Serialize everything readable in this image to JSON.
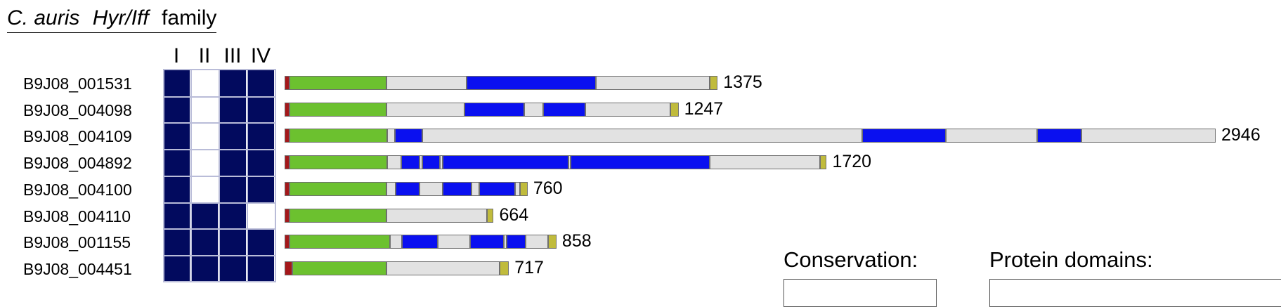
{
  "title": {
    "species": "C. auris",
    "gene_family": "Hyr/Iff",
    "suffix": "family"
  },
  "conservation_columns": [
    "I",
    "II",
    "III",
    "IV"
  ],
  "legend": {
    "conservation_title": "Conservation:",
    "domains_title": "Protein domains:"
  },
  "colors": {
    "conserved": "#020a5e",
    "not_conserved": "#ffffff",
    "signal_peptide": "#a5171a",
    "n_terminal_domain": "#6cc12f",
    "repeat_region": "#0a10f0",
    "unstructured": "#e2e2e2",
    "gpi_anchor": "#c0bb3c"
  },
  "chart_data": {
    "type": "table",
    "scale_max_length": 2946,
    "genes": [
      {
        "id": "B9J08_001531",
        "length": "1375",
        "conservation": [
          1,
          0,
          1,
          1
        ],
        "domains": [
          {
            "type": "signal_peptide",
            "start": 0,
            "end": 29
          },
          {
            "type": "n_terminal_domain",
            "start": 29,
            "end": 600
          },
          {
            "type": "unstructured",
            "start": 600,
            "end": 1070
          },
          {
            "type": "repeat_region",
            "start": 1070,
            "end": 1830
          },
          {
            "type": "unstructured",
            "start": 1830,
            "end": 2500
          },
          {
            "type": "gpi_anchor",
            "start": 2500,
            "end": 2548
          }
        ]
      },
      {
        "id": "B9J08_004098",
        "length": "1247",
        "conservation": [
          1,
          0,
          1,
          1
        ],
        "domains": [
          {
            "type": "signal_peptide",
            "start": 0,
            "end": 29
          },
          {
            "type": "n_terminal_domain",
            "start": 29,
            "end": 600
          },
          {
            "type": "unstructured",
            "start": 600,
            "end": 1060
          },
          {
            "type": "repeat_region",
            "start": 1060,
            "end": 1410
          },
          {
            "type": "unstructured",
            "start": 1410,
            "end": 1520
          },
          {
            "type": "repeat_region",
            "start": 1520,
            "end": 1770
          },
          {
            "type": "unstructured",
            "start": 1770,
            "end": 2270
          },
          {
            "type": "gpi_anchor",
            "start": 2270,
            "end": 2318
          }
        ]
      },
      {
        "id": "B9J08_004109",
        "length": "2946",
        "conservation": [
          1,
          0,
          1,
          1
        ],
        "domains": [
          {
            "type": "signal_peptide",
            "start": 0,
            "end": 29
          },
          {
            "type": "n_terminal_domain",
            "start": 29,
            "end": 605
          },
          {
            "type": "unstructured",
            "start": 605,
            "end": 650
          },
          {
            "type": "repeat_region",
            "start": 650,
            "end": 810
          },
          {
            "type": "unstructured",
            "start": 810,
            "end": 3400
          },
          {
            "type": "repeat_region",
            "start": 3400,
            "end": 3890
          },
          {
            "type": "unstructured",
            "start": 3890,
            "end": 4430
          },
          {
            "type": "repeat_region",
            "start": 4430,
            "end": 4690
          },
          {
            "type": "unstructured",
            "start": 4690,
            "end": 5479
          }
        ]
      },
      {
        "id": "B9J08_004892",
        "length": "1720",
        "conservation": [
          1,
          0,
          1,
          1
        ],
        "domains": [
          {
            "type": "signal_peptide",
            "start": 0,
            "end": 29
          },
          {
            "type": "n_terminal_domain",
            "start": 29,
            "end": 605
          },
          {
            "type": "unstructured",
            "start": 605,
            "end": 685
          },
          {
            "type": "repeat_region",
            "start": 685,
            "end": 795
          },
          {
            "type": "unstructured",
            "start": 795,
            "end": 810
          },
          {
            "type": "repeat_region",
            "start": 810,
            "end": 915
          },
          {
            "type": "unstructured",
            "start": 915,
            "end": 930
          },
          {
            "type": "repeat_region",
            "start": 930,
            "end": 1670
          },
          {
            "type": "unstructured",
            "start": 1670,
            "end": 1685
          },
          {
            "type": "repeat_region",
            "start": 1685,
            "end": 2500
          },
          {
            "type": "unstructured",
            "start": 2500,
            "end": 3150
          },
          {
            "type": "gpi_anchor",
            "start": 3150,
            "end": 3190
          }
        ]
      },
      {
        "id": "B9J08_004100",
        "length": "760",
        "conservation": [
          1,
          0,
          1,
          1
        ],
        "domains": [
          {
            "type": "signal_peptide",
            "start": 0,
            "end": 29
          },
          {
            "type": "n_terminal_domain",
            "start": 29,
            "end": 600
          },
          {
            "type": "unstructured",
            "start": 600,
            "end": 655
          },
          {
            "type": "repeat_region",
            "start": 655,
            "end": 795
          },
          {
            "type": "unstructured",
            "start": 795,
            "end": 930
          },
          {
            "type": "repeat_region",
            "start": 930,
            "end": 1100
          },
          {
            "type": "unstructured",
            "start": 1100,
            "end": 1145
          },
          {
            "type": "repeat_region",
            "start": 1145,
            "end": 1355
          },
          {
            "type": "unstructured",
            "start": 1355,
            "end": 1385
          },
          {
            "type": "gpi_anchor",
            "start": 1385,
            "end": 1430
          }
        ]
      },
      {
        "id": "B9J08_004110",
        "length": "664",
        "conservation": [
          1,
          1,
          1,
          0
        ],
        "domains": [
          {
            "type": "signal_peptide",
            "start": 0,
            "end": 29
          },
          {
            "type": "n_terminal_domain",
            "start": 29,
            "end": 600
          },
          {
            "type": "unstructured",
            "start": 600,
            "end": 1190
          },
          {
            "type": "gpi_anchor",
            "start": 1190,
            "end": 1230
          }
        ]
      },
      {
        "id": "B9J08_001155",
        "length": "858",
        "conservation": [
          1,
          1,
          1,
          1
        ],
        "domains": [
          {
            "type": "signal_peptide",
            "start": 0,
            "end": 29
          },
          {
            "type": "n_terminal_domain",
            "start": 29,
            "end": 620
          },
          {
            "type": "unstructured",
            "start": 620,
            "end": 690
          },
          {
            "type": "repeat_region",
            "start": 690,
            "end": 900
          },
          {
            "type": "unstructured",
            "start": 900,
            "end": 1090
          },
          {
            "type": "repeat_region",
            "start": 1090,
            "end": 1290
          },
          {
            "type": "unstructured",
            "start": 1290,
            "end": 1305
          },
          {
            "type": "repeat_region",
            "start": 1305,
            "end": 1420
          },
          {
            "type": "unstructured",
            "start": 1420,
            "end": 1550
          },
          {
            "type": "gpi_anchor",
            "start": 1550,
            "end": 1600
          }
        ]
      },
      {
        "id": "B9J08_004451",
        "length": "717",
        "conservation": [
          1,
          1,
          1,
          1
        ],
        "domains": [
          {
            "type": "signal_peptide",
            "start": 0,
            "end": 45
          },
          {
            "type": "n_terminal_domain",
            "start": 45,
            "end": 600
          },
          {
            "type": "unstructured",
            "start": 600,
            "end": 1265
          },
          {
            "type": "gpi_anchor",
            "start": 1265,
            "end": 1320
          }
        ]
      }
    ]
  }
}
